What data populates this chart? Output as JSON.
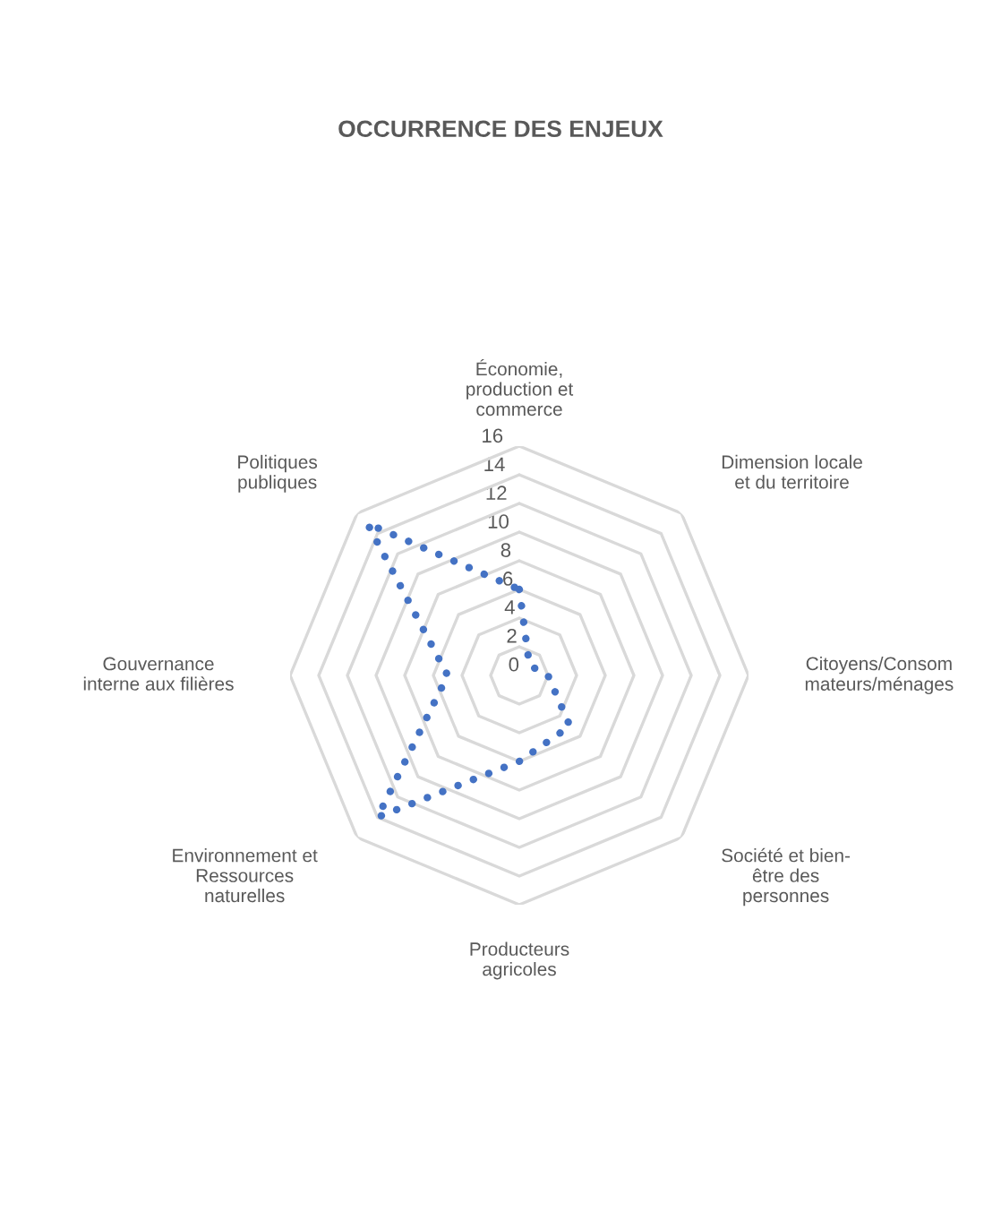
{
  "chart_data": {
    "type": "radar",
    "title": "OCCURRENCE DES ENJEUX",
    "categories": [
      "Économie,\nproduction et\ncommerce",
      "Dimension locale\net du territoire",
      "Citoyens/Consom\nmateurs/ménages",
      "Société et bien-\nêtre des\npersonnes",
      "Producteurs\nagricoles",
      "Environnement et\nRessources\nnaturelles",
      "Gouvernance\ninterne aux filières",
      "Politiques\npubliques"
    ],
    "series": [
      {
        "color": "#4472c4",
        "values": [
          6,
          1,
          2,
          5,
          6,
          14,
          5,
          15
        ]
      }
    ],
    "ylim": [
      0,
      16
    ],
    "yticks": [
      0,
      2,
      4,
      6,
      8,
      10,
      12,
      14,
      16
    ],
    "grid": true,
    "marker": "none",
    "line_style": "dotted"
  }
}
